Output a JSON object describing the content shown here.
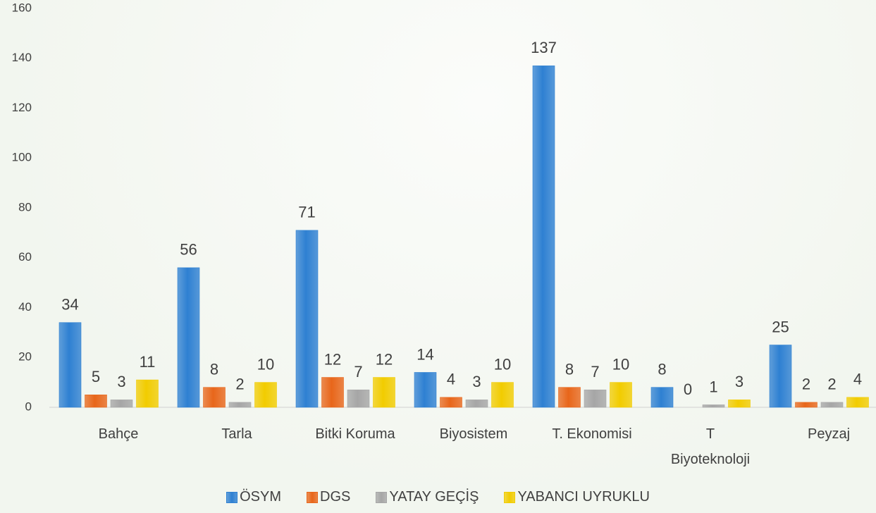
{
  "chart_data": {
    "type": "bar",
    "categories": [
      "Bahçe",
      "Tarla",
      "Bitki Koruma",
      "Biyosistem",
      "T. Ekonomisi",
      "T\nBiyoteknoloji",
      "Peyzaj"
    ],
    "series": [
      {
        "name": "ÖSYM",
        "color": "#2e80d2",
        "values": [
          34,
          56,
          71,
          14,
          137,
          8,
          25
        ]
      },
      {
        "name": "DGS",
        "color": "#e8661a",
        "values": [
          5,
          8,
          12,
          4,
          8,
          0,
          2
        ]
      },
      {
        "name": "YATAY GEÇİŞ",
        "color": "#a6a6a6",
        "values": [
          3,
          2,
          7,
          3,
          7,
          1,
          2
        ]
      },
      {
        "name": "YABANCI UYRUKLU",
        "color": "#f2cc00",
        "values": [
          11,
          10,
          12,
          10,
          10,
          3,
          4
        ]
      }
    ],
    "ylim": [
      0,
      160
    ],
    "yticks": [
      0,
      20,
      40,
      60,
      80,
      100,
      120,
      140,
      160
    ],
    "data_labels": true,
    "legend": "bottom"
  }
}
